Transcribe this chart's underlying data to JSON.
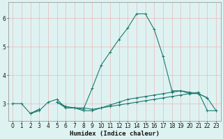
{
  "xlabel": "Humidex (Indice chaleur)",
  "bg_color": "#dff2f2",
  "grid_color": "#e8b8b8",
  "line_color": "#1a7a6e",
  "xlim": [
    -0.5,
    23.5
  ],
  "ylim": [
    2.4,
    6.55
  ],
  "yticks": [
    3,
    4,
    5,
    6
  ],
  "xticks": [
    0,
    1,
    2,
    3,
    4,
    5,
    6,
    7,
    8,
    9,
    10,
    11,
    12,
    13,
    14,
    15,
    16,
    17,
    18,
    19,
    20,
    21,
    22,
    23
  ],
  "line1_y": [
    3.0,
    3.0,
    2.65,
    2.75,
    3.05,
    3.15,
    2.85,
    2.85,
    2.8,
    3.55,
    4.35,
    4.8,
    5.25,
    5.65,
    6.15,
    6.15,
    5.6,
    4.65,
    3.45,
    3.45,
    3.35,
    3.35,
    3.2,
    null
  ],
  "line2_y": [
    3.0,
    null,
    2.65,
    2.8,
    null,
    3.05,
    2.85,
    2.85,
    2.85,
    2.8,
    2.85,
    2.9,
    2.95,
    3.0,
    3.05,
    3.1,
    3.15,
    3.2,
    3.25,
    3.3,
    3.35,
    3.4,
    2.75,
    2.75
  ],
  "line3_y": [
    3.0,
    null,
    2.65,
    2.8,
    null,
    3.05,
    2.9,
    2.85,
    2.75,
    2.75,
    2.85,
    2.95,
    3.05,
    3.15,
    3.2,
    3.25,
    3.3,
    3.35,
    3.4,
    3.45,
    3.4,
    3.35,
    3.2,
    2.75
  ]
}
